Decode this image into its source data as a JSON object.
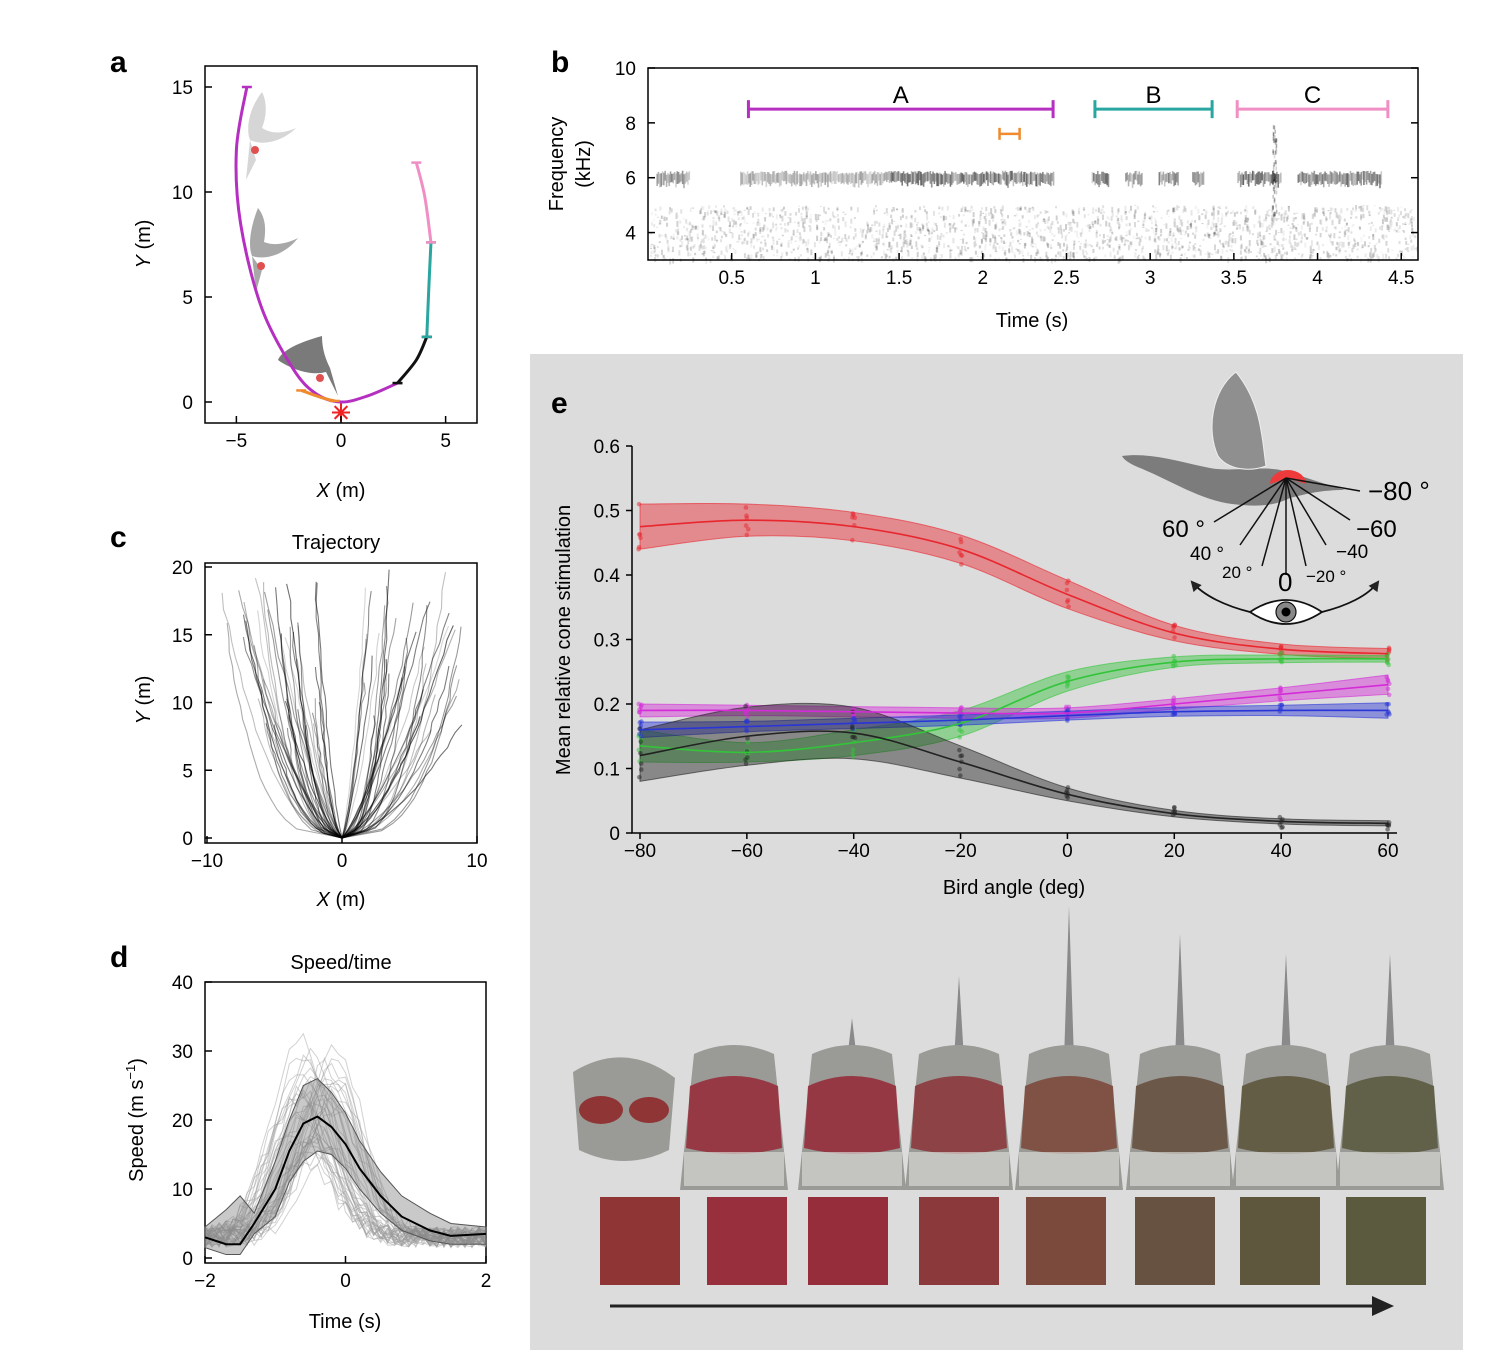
{
  "panels": {
    "a": {
      "letter": "a",
      "xlabel_var": "X",
      "xlabel_unit": " (m)",
      "ylabel_var": "Y",
      "ylabel_unit": " (m)",
      "xticks": [
        "−5",
        "0",
        "5"
      ],
      "yticks": [
        "0",
        "5",
        "10",
        "15"
      ]
    },
    "b": {
      "letter": "b",
      "ylabel_line1": "Frequency",
      "ylabel_line2": "(kHz)",
      "xlabel": "Time (s)",
      "xticks": [
        "0.5",
        "1",
        "1.5",
        "2",
        "2.5",
        "3",
        "3.5",
        "4",
        "4.5"
      ],
      "yticks": [
        "4",
        "6",
        "8",
        "10"
      ],
      "segment_labels": [
        "A",
        "B",
        "C"
      ]
    },
    "c": {
      "letter": "c",
      "title": "Trajectory",
      "xlabel_var": "X",
      "xlabel_unit": " (m)",
      "ylabel_var": "Y",
      "ylabel_unit": " (m)",
      "xticks": [
        "−10",
        "0",
        "10"
      ],
      "yticks": [
        "0",
        "5",
        "10",
        "15",
        "20"
      ]
    },
    "d": {
      "letter": "d",
      "title": "Speed/time",
      "xlabel": "Time (s)",
      "ylabel_main": "Speed (m s",
      "ylabel_sup": "−1",
      "ylabel_close": ")",
      "xticks": [
        "−2",
        "0",
        "2"
      ],
      "yticks": [
        "0",
        "10",
        "20",
        "30",
        "40"
      ]
    },
    "e": {
      "letter": "e",
      "xlabel": "Bird angle (deg)",
      "ylabel": "Mean relative cone stimulation",
      "xticks": [
        "−80",
        "−60",
        "−40",
        "−20",
        "0",
        "20",
        "40",
        "60"
      ],
      "yticks": [
        "0",
        "0.1",
        "0.2",
        "0.3",
        "0.4",
        "0.5",
        "0.6"
      ],
      "inset_labels": [
        "−80 °",
        "60 °",
        "−60",
        "40 °",
        "−40",
        "20 °",
        "−20 °",
        "0"
      ]
    }
  },
  "colors": {
    "red": "#e8262e",
    "green": "#33c43a",
    "magenta": "#d42ad8",
    "blue": "#2a35d6",
    "black": "#222222",
    "segA": "#b52fc0",
    "segB": "#2aa6a0",
    "segC": "#ef8fc4",
    "orange": "#ef8a2e",
    "panel_bg": "#dcdcdc"
  },
  "swatches": [
    "#8f3535",
    "#972f3c",
    "#962d3b",
    "#8c393c",
    "#7c4a3c",
    "#675140",
    "#5e563d",
    "#5b5a3f"
  ],
  "chart_data": [
    {
      "panel": "a",
      "type": "line",
      "xlabel": "X (m)",
      "ylabel": "Y (m)",
      "xlim": [
        -6.5,
        6.5
      ],
      "ylim": [
        -1,
        16
      ],
      "series": [
        {
          "name": "A",
          "color": "#b52fc0",
          "x": [
            -4.5,
            -5.0,
            -4.8,
            -3.8,
            -2.3,
            -1.2,
            0,
            1.3,
            2.7
          ],
          "y": [
            15.0,
            12,
            8.5,
            4.5,
            1.6,
            0.4,
            0,
            0.3,
            0.9
          ]
        },
        {
          "name": "black",
          "color": "#111111",
          "x": [
            2.7,
            3.6,
            4.1
          ],
          "y": [
            0.9,
            2.0,
            3.1
          ]
        },
        {
          "name": "B",
          "color": "#2aa6a0",
          "x": [
            4.1,
            4.2,
            4.3
          ],
          "y": [
            3.1,
            5.5,
            7.6
          ]
        },
        {
          "name": "C",
          "color": "#ef8fc4",
          "x": [
            4.3,
            4.0,
            3.6
          ],
          "y": [
            7.6,
            9.8,
            11.4
          ]
        },
        {
          "name": "orange",
          "color": "#ef8a2e",
          "x": [
            -1.9,
            -0.9,
            -0.3
          ],
          "y": [
            0.55,
            0.2,
            0.05
          ]
        }
      ],
      "start_marker": {
        "x": 0,
        "y": -0.5
      }
    },
    {
      "panel": "b",
      "type": "heatmap",
      "title": "",
      "xlabel": "Time (s)",
      "ylabel": "Frequency (kHz)",
      "xlim": [
        0,
        4.6
      ],
      "ylim": [
        3,
        10
      ],
      "segments": [
        {
          "label": "A",
          "start": 0.6,
          "end": 2.42,
          "freq": 8.5,
          "color": "#b52fc0"
        },
        {
          "label": "B",
          "start": 2.67,
          "end": 3.37,
          "freq": 8.5,
          "color": "#2aa6a0"
        },
        {
          "label": "C",
          "start": 3.52,
          "end": 4.42,
          "freq": 8.5,
          "color": "#ef8fc4"
        },
        {
          "label": "",
          "start": 2.1,
          "end": 2.22,
          "freq": 7.6,
          "color": "#ef8a2e"
        }
      ],
      "energy_band_khz": 6
    },
    {
      "panel": "c",
      "type": "line",
      "title": "Trajectory",
      "xlabel": "X (m)",
      "ylabel": "Y (m)",
      "xlim": [
        -10,
        10
      ],
      "ylim": [
        0,
        20
      ],
      "trajectory_count": 80
    },
    {
      "panel": "d",
      "type": "line",
      "title": "Speed/time",
      "xlabel": "Time (s)",
      "ylabel": "Speed (m s−1)",
      "xlim": [
        -2,
        2
      ],
      "ylim": [
        0,
        40
      ],
      "mean": {
        "x": [
          -2,
          -1.7,
          -1.5,
          -1.3,
          -1.0,
          -0.8,
          -0.6,
          -0.4,
          -0.2,
          0,
          0.2,
          0.5,
          0.8,
          1.2,
          1.5,
          2
        ],
        "y": [
          3.0,
          2.0,
          2.0,
          5.0,
          10.0,
          15.5,
          19.5,
          20.5,
          19.0,
          16.5,
          13.0,
          9.0,
          6.0,
          4.0,
          3.2,
          3.5
        ]
      },
      "band_upper": [
        4.5,
        7.0,
        9.0,
        6.5,
        14.0,
        20.0,
        25.0,
        26.0,
        24.0,
        21.0,
        17.0,
        12.5,
        9.0,
        6.5,
        5.0,
        4.5
      ],
      "band_lower": [
        1.5,
        0.5,
        0.5,
        3.5,
        6.0,
        11.0,
        14.0,
        15.5,
        15.0,
        13.0,
        10.0,
        6.5,
        4.0,
        2.5,
        2.0,
        2.0
      ]
    },
    {
      "panel": "e",
      "type": "line",
      "xlabel": "Bird angle (deg)",
      "ylabel": "Mean relative cone stimulation",
      "xlim": [
        -82,
        60
      ],
      "ylim": [
        0,
        0.6
      ],
      "x": [
        -80,
        -60,
        -40,
        -20,
        0,
        20,
        40,
        60
      ],
      "series": [
        {
          "name": "red",
          "color": "#e8262e",
          "values": [
            0.475,
            0.485,
            0.475,
            0.44,
            0.37,
            0.31,
            0.285,
            0.278
          ],
          "band": [
            0.035,
            0.025,
            0.022,
            0.022,
            0.022,
            0.012,
            0.008,
            0.008
          ]
        },
        {
          "name": "green",
          "color": "#33c43a",
          "values": [
            0.135,
            0.125,
            0.14,
            0.17,
            0.235,
            0.265,
            0.27,
            0.27
          ],
          "band": [
            0.025,
            0.015,
            0.02,
            0.02,
            0.015,
            0.008,
            0.006,
            0.005
          ]
        },
        {
          "name": "magenta",
          "color": "#d42ad8",
          "values": [
            0.19,
            0.19,
            0.188,
            0.186,
            0.186,
            0.2,
            0.215,
            0.23
          ],
          "band": [
            0.01,
            0.008,
            0.008,
            0.008,
            0.008,
            0.008,
            0.01,
            0.015
          ]
        },
        {
          "name": "blue",
          "color": "#2a35d6",
          "values": [
            0.16,
            0.165,
            0.17,
            0.175,
            0.182,
            0.188,
            0.19,
            0.19
          ],
          "band": [
            0.012,
            0.008,
            0.008,
            0.008,
            0.007,
            0.007,
            0.008,
            0.012
          ]
        },
        {
          "name": "black",
          "color": "#222222",
          "values": [
            0.12,
            0.15,
            0.155,
            0.11,
            0.06,
            0.03,
            0.018,
            0.015
          ],
          "band": [
            0.04,
            0.045,
            0.04,
            0.025,
            0.01,
            0.005,
            0.004,
            0.004
          ]
        }
      ]
    }
  ]
}
